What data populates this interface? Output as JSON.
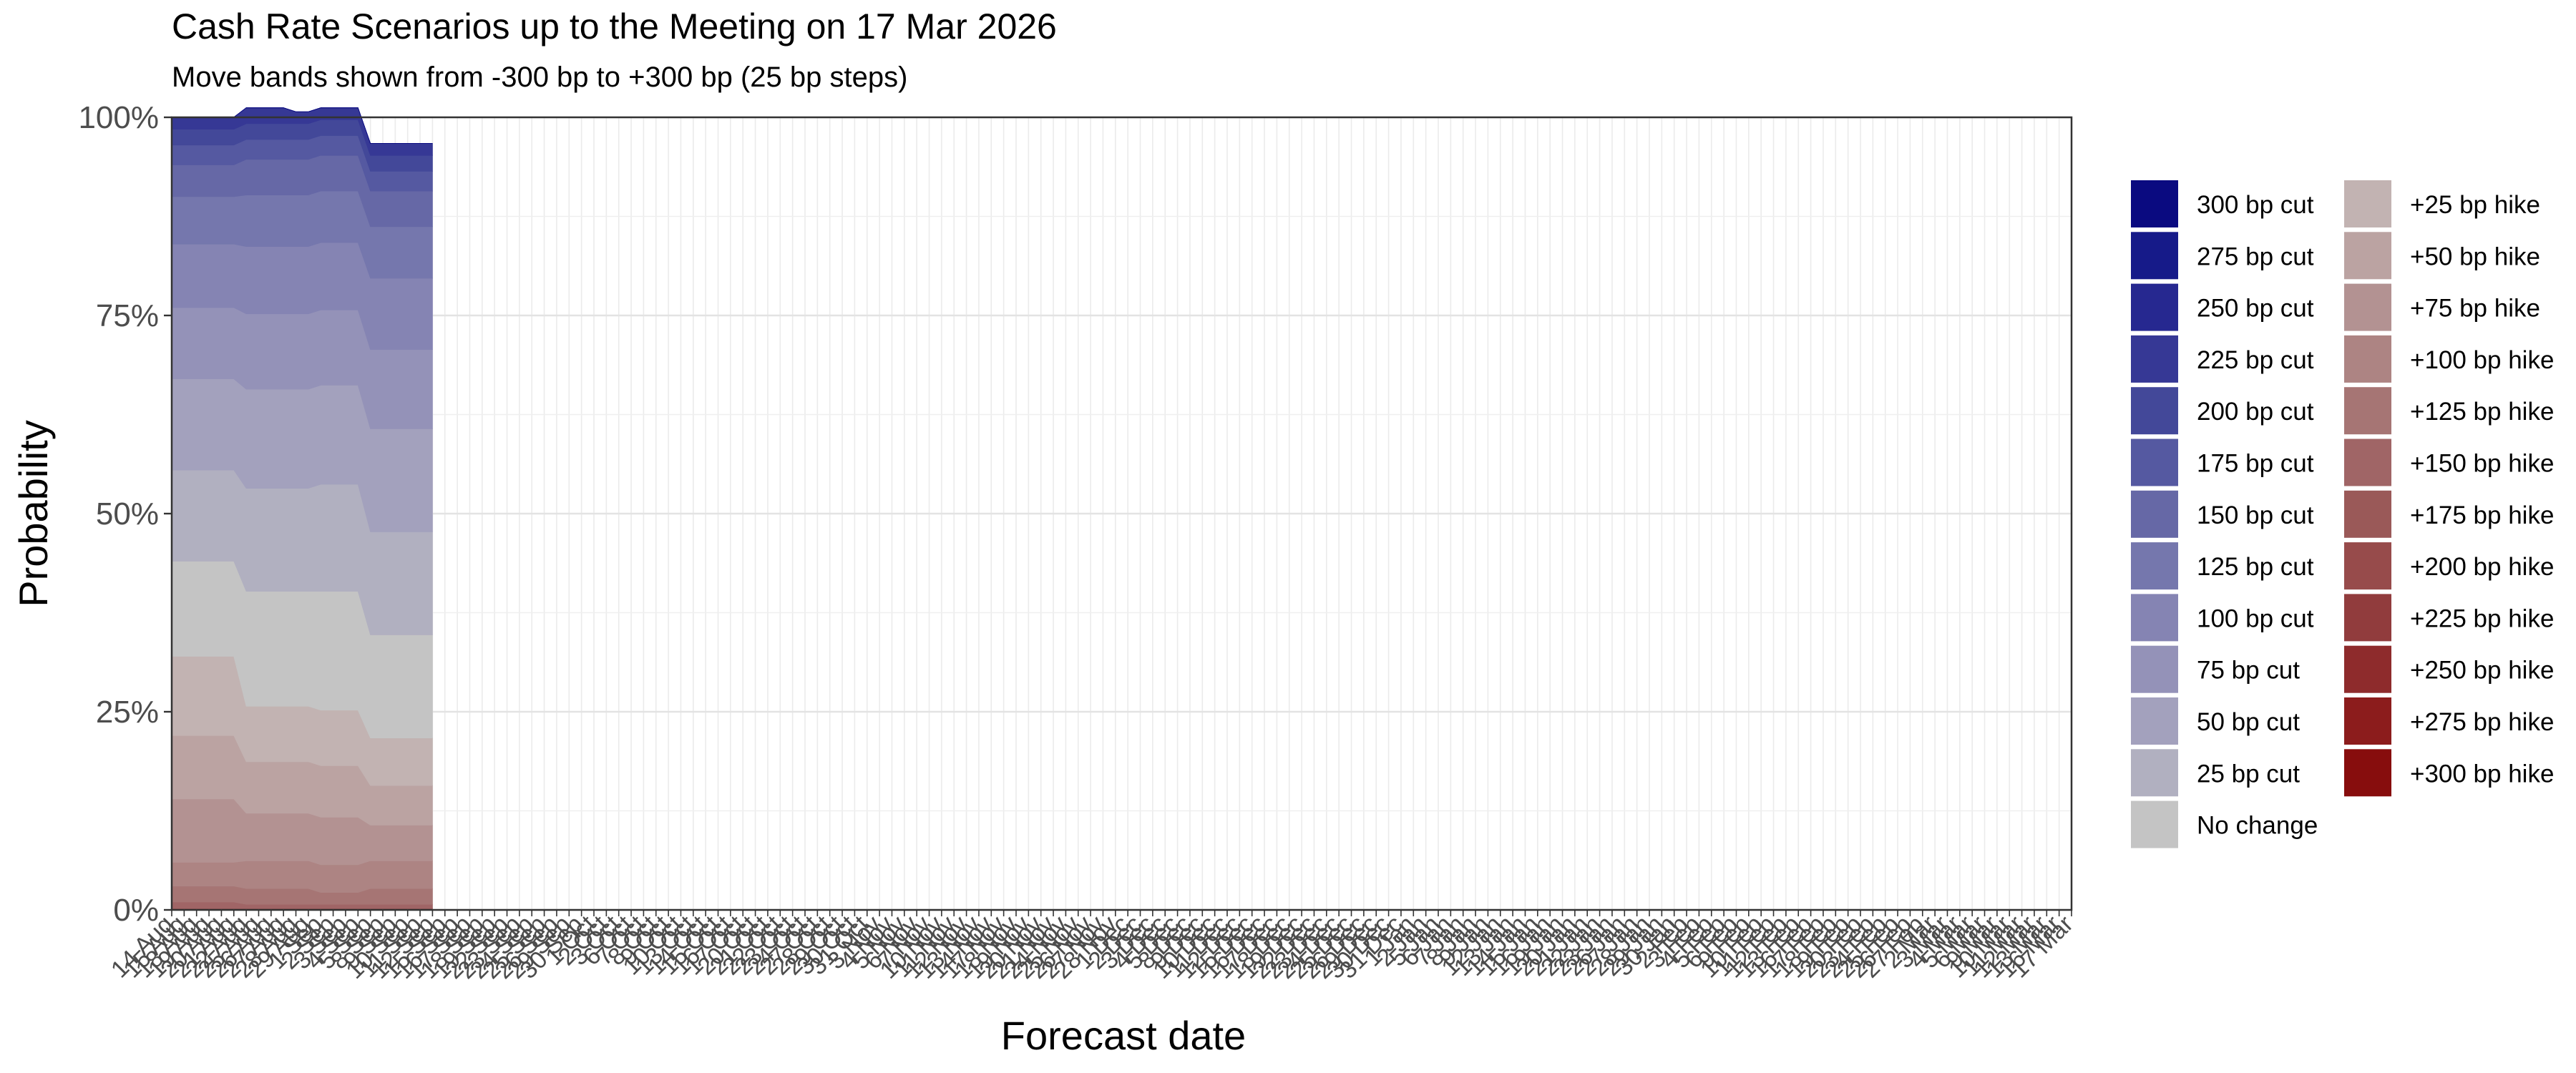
{
  "chart_data": {
    "type": "area",
    "stacked": true,
    "normalized": true,
    "title": "Cash Rate Scenarios up to the Meeting on 17 Mar 2026",
    "subtitle": "Move bands shown from -300 bp to +300 bp (25 bp steps)",
    "xlabel": "Forecast date",
    "ylabel": "Probability",
    "ylim": [
      0,
      1
    ],
    "y_ticks": [
      "0%",
      "25%",
      "50%",
      "75%",
      "100%"
    ],
    "x_tick_labels": [
      "14 Aug",
      "15 Aug",
      "18 Aug",
      "19 Aug",
      "20 Aug",
      "21 Aug",
      "22 Aug",
      "25 Aug",
      "26 Aug",
      "27 Aug",
      "28 Aug",
      "29 Aug",
      "1 Sep",
      "2 Sep",
      "3 Sep",
      "4 Sep",
      "5 Sep",
      "8 Sep",
      "9 Sep",
      "10 Sep",
      "11 Sep",
      "12 Sep",
      "15 Sep",
      "16 Sep",
      "17 Sep",
      "18 Sep",
      "19 Sep",
      "22 Sep",
      "23 Sep",
      "24 Sep",
      "25 Sep",
      "26 Sep",
      "29 Sep",
      "30 Sep",
      "1 Oct",
      "2 Oct",
      "3 Oct",
      "6 Oct",
      "7 Oct",
      "8 Oct",
      "9 Oct",
      "10 Oct",
      "13 Oct",
      "14 Oct",
      "15 Oct",
      "16 Oct",
      "17 Oct",
      "20 Oct",
      "21 Oct",
      "22 Oct",
      "23 Oct",
      "24 Oct",
      "27 Oct",
      "28 Oct",
      "29 Oct",
      "30 Oct",
      "31 Oct",
      "3 Nov",
      "4 Nov",
      "5 Nov",
      "6 Nov",
      "7 Nov",
      "10 Nov",
      "11 Nov",
      "12 Nov",
      "13 Nov",
      "14 Nov",
      "17 Nov",
      "18 Nov",
      "19 Nov",
      "20 Nov",
      "21 Nov",
      "24 Nov",
      "25 Nov",
      "26 Nov",
      "27 Nov",
      "28 Nov",
      "1 Dec",
      "2 Dec",
      "3 Dec",
      "4 Dec",
      "5 Dec",
      "8 Dec",
      "9 Dec",
      "10 Dec",
      "11 Dec",
      "12 Dec",
      "15 Dec",
      "16 Dec",
      "17 Dec",
      "18 Dec",
      "19 Dec",
      "22 Dec",
      "23 Dec",
      "24 Dec",
      "25 Dec",
      "26 Dec",
      "29 Dec",
      "30 Dec",
      "31 Dec",
      "1 Jan",
      "2 Jan",
      "5 Jan",
      "6 Jan",
      "7 Jan",
      "8 Jan",
      "9 Jan",
      "12 Jan",
      "13 Jan",
      "14 Jan",
      "15 Jan",
      "16 Jan",
      "19 Jan",
      "20 Jan",
      "21 Jan",
      "22 Jan",
      "23 Jan",
      "26 Jan",
      "27 Jan",
      "28 Jan",
      "29 Jan",
      "30 Jan",
      "2 Feb",
      "3 Feb",
      "4 Feb",
      "5 Feb",
      "6 Feb",
      "9 Feb",
      "10 Feb",
      "11 Feb",
      "12 Feb",
      "13 Feb",
      "16 Feb",
      "17 Feb",
      "18 Feb",
      "19 Feb",
      "20 Feb",
      "23 Feb",
      "24 Feb",
      "25 Feb",
      "26 Feb",
      "27 Feb",
      "2 Mar",
      "3 Mar",
      "4 Mar",
      "5 Mar",
      "6 Mar",
      "9 Mar",
      "10 Mar",
      "11 Mar",
      "12 Mar",
      "13 Mar",
      "16 Mar",
      "17 Mar"
    ],
    "x": [
      "14 Aug",
      "15 Aug",
      "18 Aug",
      "19 Aug",
      "20 Aug",
      "21 Aug",
      "22 Aug",
      "25 Aug",
      "26 Aug",
      "27 Aug",
      "28 Aug",
      "29 Aug",
      "1 Sep",
      "2 Sep",
      "3 Sep",
      "4 Sep",
      "5 Sep",
      "8 Sep",
      "9 Sep",
      "10 Sep",
      "11 Sep",
      "12 Sep"
    ],
    "series": [
      {
        "name": "300 bp cut",
        "color": "#0a0a80",
        "values": [
          0.0,
          0.0,
          0.0,
          0.0,
          0.0,
          0.0,
          0.0,
          0.0,
          0.0,
          0.0,
          0.0,
          0.0,
          0.0,
          0.0,
          0.0,
          0.0,
          0.0,
          0.0,
          0.0,
          0.0,
          0.0,
          0.0
        ]
      },
      {
        "name": "275 bp cut",
        "color": "#161a89",
        "values": [
          0.0,
          0.0,
          0.0,
          0.0,
          0.0,
          0.0,
          0.0,
          0.0,
          0.0,
          0.0,
          0.0,
          0.0,
          0.0,
          0.0,
          0.0,
          0.0,
          0.0,
          0.0,
          0.0,
          0.0,
          0.0,
          0.0
        ]
      },
      {
        "name": "250 bp cut",
        "color": "#262890",
        "values": [
          0.0,
          0.0,
          0.0,
          0.0,
          0.0,
          0.0,
          0.0,
          0.0,
          0.0,
          0.0,
          0.0,
          0.0,
          0.0,
          0.0,
          0.0,
          0.0,
          0.0,
          0.0,
          0.0,
          0.0,
          0.0,
          0.0
        ]
      },
      {
        "name": "225 bp cut",
        "color": "#363895",
        "values": [
          0.015,
          0.015,
          0.015,
          0.015,
          0.015,
          0.015,
          0.02,
          0.02,
          0.02,
          0.02,
          0.015,
          0.015,
          0.015,
          0.015,
          0.015,
          0.015,
          0.015,
          0.015,
          0.015,
          0.015,
          0.015,
          0.015
        ]
      },
      {
        "name": "200 bp cut",
        "color": "#434899",
        "values": [
          0.02,
          0.02,
          0.02,
          0.02,
          0.02,
          0.02,
          0.02,
          0.02,
          0.02,
          0.02,
          0.02,
          0.02,
          0.02,
          0.02,
          0.02,
          0.02,
          0.02,
          0.02,
          0.02,
          0.02,
          0.02,
          0.02
        ]
      },
      {
        "name": "175 bp cut",
        "color": "#5559a1",
        "values": [
          0.025,
          0.025,
          0.025,
          0.025,
          0.025,
          0.025,
          0.025,
          0.025,
          0.025,
          0.025,
          0.025,
          0.025,
          0.025,
          0.025,
          0.025,
          0.025,
          0.025,
          0.025,
          0.025,
          0.025,
          0.025,
          0.025
        ]
      },
      {
        "name": "150 bp cut",
        "color": "#6668a6",
        "values": [
          0.04,
          0.04,
          0.04,
          0.04,
          0.04,
          0.04,
          0.045,
          0.045,
          0.045,
          0.045,
          0.045,
          0.045,
          0.045,
          0.045,
          0.045,
          0.045,
          0.045,
          0.045,
          0.045,
          0.045,
          0.045,
          0.045
        ]
      },
      {
        "name": "125 bp cut",
        "color": "#7577ad",
        "values": [
          0.06,
          0.06,
          0.06,
          0.06,
          0.06,
          0.06,
          0.065,
          0.065,
          0.065,
          0.065,
          0.065,
          0.065,
          0.065,
          0.065,
          0.065,
          0.065,
          0.065,
          0.065,
          0.065,
          0.065,
          0.065,
          0.065
        ]
      },
      {
        "name": "100 bp cut",
        "color": "#8584b3",
        "values": [
          0.08,
          0.08,
          0.08,
          0.08,
          0.08,
          0.08,
          0.085,
          0.085,
          0.085,
          0.085,
          0.085,
          0.085,
          0.085,
          0.085,
          0.085,
          0.085,
          0.09,
          0.09,
          0.09,
          0.09,
          0.09,
          0.09
        ]
      },
      {
        "name": "75 bp cut",
        "color": "#9492b8",
        "values": [
          0.09,
          0.09,
          0.09,
          0.09,
          0.09,
          0.09,
          0.095,
          0.095,
          0.095,
          0.095,
          0.095,
          0.095,
          0.095,
          0.095,
          0.095,
          0.095,
          0.1,
          0.1,
          0.1,
          0.1,
          0.1,
          0.1
        ]
      },
      {
        "name": "50 bp cut",
        "color": "#a3a1bd",
        "values": [
          0.115,
          0.115,
          0.115,
          0.115,
          0.115,
          0.115,
          0.125,
          0.125,
          0.125,
          0.125,
          0.125,
          0.125,
          0.125,
          0.125,
          0.125,
          0.125,
          0.13,
          0.13,
          0.13,
          0.13,
          0.13,
          0.13
        ]
      },
      {
        "name": "25 bp cut",
        "color": "#b1b0c0",
        "values": [
          0.115,
          0.115,
          0.115,
          0.115,
          0.115,
          0.115,
          0.13,
          0.13,
          0.13,
          0.13,
          0.13,
          0.13,
          0.135,
          0.135,
          0.135,
          0.135,
          0.13,
          0.13,
          0.13,
          0.13,
          0.13,
          0.13
        ]
      },
      {
        "name": "No change",
        "color": "#c4c4c4",
        "values": [
          0.12,
          0.12,
          0.12,
          0.12,
          0.12,
          0.12,
          0.145,
          0.145,
          0.145,
          0.145,
          0.145,
          0.145,
          0.15,
          0.15,
          0.15,
          0.15,
          0.13,
          0.13,
          0.13,
          0.13,
          0.13,
          0.13
        ]
      },
      {
        "name": "+25 bp hike",
        "color": "#c2b3b2",
        "values": [
          0.1,
          0.1,
          0.1,
          0.1,
          0.1,
          0.1,
          0.07,
          0.07,
          0.07,
          0.07,
          0.07,
          0.07,
          0.07,
          0.07,
          0.07,
          0.07,
          0.06,
          0.06,
          0.06,
          0.06,
          0.06,
          0.06
        ]
      },
      {
        "name": "+50 bp hike",
        "color": "#bba3a2",
        "values": [
          0.08,
          0.08,
          0.08,
          0.08,
          0.08,
          0.08,
          0.065,
          0.065,
          0.065,
          0.065,
          0.065,
          0.065,
          0.065,
          0.065,
          0.065,
          0.065,
          0.05,
          0.05,
          0.05,
          0.05,
          0.05,
          0.05
        ]
      },
      {
        "name": "+75 bp hike",
        "color": "#b39292",
        "values": [
          0.08,
          0.08,
          0.08,
          0.08,
          0.08,
          0.08,
          0.06,
          0.06,
          0.06,
          0.06,
          0.06,
          0.06,
          0.06,
          0.06,
          0.06,
          0.06,
          0.045,
          0.045,
          0.045,
          0.045,
          0.045,
          0.045
        ]
      },
      {
        "name": "+100 bp hike",
        "color": "#ad8483",
        "values": [
          0.03,
          0.03,
          0.03,
          0.03,
          0.03,
          0.03,
          0.035,
          0.035,
          0.035,
          0.035,
          0.035,
          0.035,
          0.035,
          0.035,
          0.035,
          0.035,
          0.035,
          0.035,
          0.035,
          0.035,
          0.035,
          0.035
        ]
      },
      {
        "name": "+125 bp hike",
        "color": "#a67574",
        "values": [
          0.02,
          0.02,
          0.02,
          0.02,
          0.02,
          0.02,
          0.02,
          0.02,
          0.02,
          0.02,
          0.02,
          0.02,
          0.015,
          0.015,
          0.015,
          0.015,
          0.02,
          0.02,
          0.02,
          0.02,
          0.02,
          0.02
        ]
      },
      {
        "name": "+150 bp hike",
        "color": "#a06566",
        "values": [
          0.008,
          0.008,
          0.008,
          0.008,
          0.008,
          0.008,
          0.005,
          0.005,
          0.005,
          0.005,
          0.005,
          0.005,
          0.005,
          0.005,
          0.005,
          0.005,
          0.005,
          0.005,
          0.005,
          0.005,
          0.005,
          0.005
        ]
      },
      {
        "name": "+175 bp hike",
        "color": "#9a5958",
        "values": [
          0.002,
          0.002,
          0.002,
          0.002,
          0.002,
          0.002,
          0.002,
          0.002,
          0.002,
          0.002,
          0.002,
          0.002,
          0.002,
          0.002,
          0.002,
          0.002,
          0.002,
          0.002,
          0.002,
          0.002,
          0.002,
          0.002
        ]
      },
      {
        "name": "+200 bp hike",
        "color": "#974b4b",
        "values": [
          0.0,
          0.0,
          0.0,
          0.0,
          0.0,
          0.0,
          0.0,
          0.0,
          0.0,
          0.0,
          0.0,
          0.0,
          0.0,
          0.0,
          0.0,
          0.0,
          0.0,
          0.0,
          0.0,
          0.0,
          0.0,
          0.0
        ]
      },
      {
        "name": "+225 bp hike",
        "color": "#913c3d",
        "values": [
          0.0,
          0.0,
          0.0,
          0.0,
          0.0,
          0.0,
          0.0,
          0.0,
          0.0,
          0.0,
          0.0,
          0.0,
          0.0,
          0.0,
          0.0,
          0.0,
          0.0,
          0.0,
          0.0,
          0.0,
          0.0,
          0.0
        ]
      },
      {
        "name": "+250 bp hike",
        "color": "#8e2b2c",
        "values": [
          0.0,
          0.0,
          0.0,
          0.0,
          0.0,
          0.0,
          0.0,
          0.0,
          0.0,
          0.0,
          0.0,
          0.0,
          0.0,
          0.0,
          0.0,
          0.0,
          0.0,
          0.0,
          0.0,
          0.0,
          0.0,
          0.0
        ]
      },
      {
        "name": "+275 bp hike",
        "color": "#8c1c1c",
        "values": [
          0.0,
          0.0,
          0.0,
          0.0,
          0.0,
          0.0,
          0.0,
          0.0,
          0.0,
          0.0,
          0.0,
          0.0,
          0.0,
          0.0,
          0.0,
          0.0,
          0.0,
          0.0,
          0.0,
          0.0,
          0.0,
          0.0
        ]
      },
      {
        "name": "+300 bp hike",
        "color": "#870d0d",
        "values": [
          0.0,
          0.0,
          0.0,
          0.0,
          0.0,
          0.0,
          0.0,
          0.0,
          0.0,
          0.0,
          0.0,
          0.0,
          0.0,
          0.0,
          0.0,
          0.0,
          0.0,
          0.0,
          0.0,
          0.0,
          0.0,
          0.0
        ]
      }
    ],
    "legend_position": "right",
    "grid": true,
    "panel_border": true
  }
}
